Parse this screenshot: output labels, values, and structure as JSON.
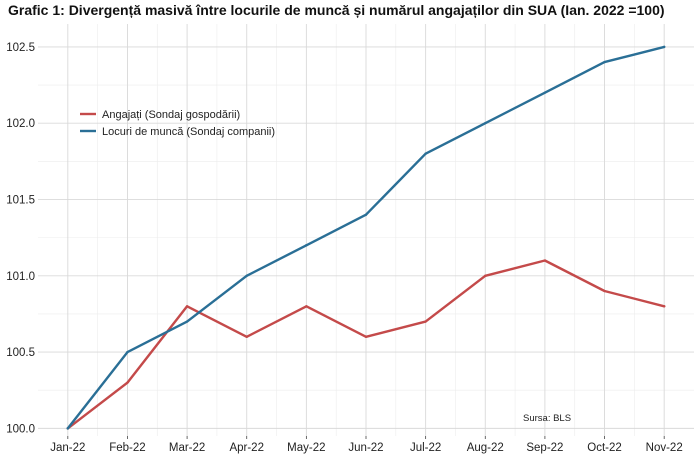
{
  "chart_data": {
    "type": "line",
    "title": "Grafic 1: Divergență masivă între locurile de muncă și numărul angajaților din SUA (Ian. 2022 =100)",
    "xlabel": "",
    "ylabel": "",
    "categories": [
      "Jan-22",
      "Feb-22",
      "Mar-22",
      "Apr-22",
      "May-22",
      "Jun-22",
      "Jul-22",
      "Aug-22",
      "Sep-22",
      "Oct-22",
      "Nov-22"
    ],
    "ylim": [
      99.95,
      102.65
    ],
    "yticks": [
      "100.0",
      "100.5",
      "101.0",
      "101.5",
      "102.0",
      "102.5"
    ],
    "grid": true,
    "legend_position": "upper-left",
    "series": [
      {
        "name": "Angajați (Sondaj gospodării)",
        "color": "#c44a4a",
        "values": [
          100.0,
          100.3,
          100.8,
          100.6,
          100.8,
          100.6,
          100.7,
          101.0,
          101.1,
          100.9,
          100.8
        ]
      },
      {
        "name": "Locuri de muncă (Sondaj companii)",
        "color": "#2a6f96",
        "values": [
          100.0,
          100.5,
          100.7,
          101.0,
          101.2,
          101.4,
          101.8,
          102.0,
          102.2,
          102.4,
          102.5
        ]
      }
    ],
    "annotation": "Sursa: BLS"
  }
}
